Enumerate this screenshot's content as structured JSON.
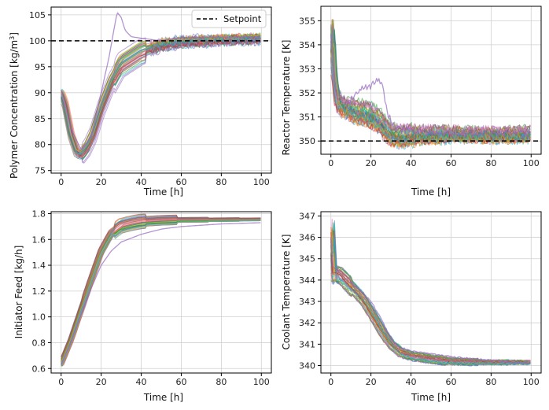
{
  "figure": {
    "palette": [
      "#1f77b4",
      "#ff7f0e",
      "#2ca02c",
      "#d62728",
      "#9467bd",
      "#8c564b",
      "#e377c2",
      "#7f7f7f",
      "#bcbd22",
      "#17becf"
    ],
    "grid_color": "#d0d0d0",
    "setpoint_color": "#000000",
    "line_alpha": 0.55
  },
  "chart_data": [
    {
      "id": "polymer",
      "type": "line",
      "title": "",
      "xlabel": "Time [h]",
      "ylabel_main": "Polymer Concentration [kg/m",
      "ylabel_sup": "3",
      "ylabel_tail": "]",
      "xlim": [
        -5,
        105
      ],
      "ylim": [
        74.5,
        106.5
      ],
      "xticks": [
        0,
        20,
        40,
        60,
        80,
        100
      ],
      "yticks": [
        75,
        80,
        85,
        90,
        95,
        100,
        105
      ],
      "setpoint": 100,
      "legend": {
        "label": "Setpoint",
        "location": "top-right"
      },
      "n_traces": 40,
      "trend": {
        "t": [
          0,
          2,
          5,
          8,
          10,
          13,
          16,
          20,
          25,
          30,
          40,
          50,
          60,
          70,
          80,
          90,
          100
        ],
        "y": [
          90,
          88,
          82,
          78.5,
          78,
          79.5,
          82,
          87,
          92,
          95.5,
          98,
          99.2,
          99.8,
          100,
          100.2,
          100.3,
          100.4
        ]
      },
      "spread": [
        0.9,
        1.6,
        2.5,
        1.0,
        0.9,
        0.8,
        0.8
      ],
      "outlier": {
        "t": [
          0,
          5,
          10,
          15,
          20,
          24,
          27,
          28,
          30,
          32,
          35,
          40,
          50,
          60,
          100
        ],
        "y": [
          90.5,
          83,
          79,
          81.5,
          90,
          97,
          103.5,
          105.5,
          104.5,
          102,
          100.8,
          100.5,
          100,
          100.6,
          100.8
        ]
      }
    },
    {
      "id": "reactor",
      "type": "line",
      "title": "",
      "xlabel": "Time [h]",
      "ylabel": "Reactor Temperature [K]",
      "xlim": [
        -5,
        105
      ],
      "ylim": [
        349.45,
        355.6
      ],
      "xticks": [
        0,
        20,
        40,
        60,
        80,
        100
      ],
      "yticks": [
        350,
        351,
        352,
        353,
        354,
        355
      ],
      "setpoint": 350,
      "n_traces": 40,
      "trend": {
        "t": [
          0,
          0.5,
          1.5,
          3,
          5,
          10,
          15,
          20,
          25,
          28,
          30,
          35,
          40,
          60,
          80,
          100
        ],
        "y": [
          353.8,
          355.0,
          353.0,
          351.9,
          351.5,
          351.3,
          351.2,
          351.1,
          350.8,
          350.5,
          350.3,
          350.2,
          350.25,
          350.3,
          350.25,
          350.3
        ]
      },
      "spread": [
        0.35,
        0.45,
        0.4,
        0.3,
        0.25,
        0.25,
        0.25
      ],
      "noise": 0.18,
      "outlier": {
        "t": [
          0,
          1,
          3,
          8,
          12,
          16,
          20,
          24,
          26,
          28,
          32,
          40,
          60,
          100
        ],
        "y": [
          354.5,
          353.5,
          351.8,
          351.6,
          351.9,
          352.2,
          352.3,
          352.6,
          352.3,
          351.2,
          350.5,
          350.4,
          350.3,
          350.3
        ]
      }
    },
    {
      "id": "initiator",
      "type": "line",
      "title": "",
      "xlabel": "Time [h]",
      "ylabel": "Initiator Feed [kg/h]",
      "xlim": [
        -5,
        105
      ],
      "ylim": [
        0.565,
        1.815
      ],
      "xticks": [
        0,
        20,
        40,
        60,
        80,
        100
      ],
      "yticks": [
        0.6,
        0.8,
        1.0,
        1.2,
        1.4,
        1.6,
        1.8
      ],
      "n_traces": 40,
      "trend": {
        "t": [
          0,
          5,
          10,
          15,
          20,
          25,
          30,
          35,
          40,
          50,
          60,
          80,
          100
        ],
        "y": [
          0.63,
          0.82,
          1.05,
          1.28,
          1.5,
          1.64,
          1.7,
          1.72,
          1.735,
          1.745,
          1.75,
          1.752,
          1.755
        ]
      },
      "spread": [
        0.015,
        0.03,
        0.06,
        0.04,
        0.02,
        0.015,
        0.012
      ],
      "outlier": {
        "t": [
          0,
          5,
          10,
          15,
          20,
          25,
          30,
          40,
          50,
          60,
          80,
          100
        ],
        "y": [
          0.63,
          0.81,
          1.02,
          1.22,
          1.4,
          1.51,
          1.58,
          1.64,
          1.68,
          1.7,
          1.72,
          1.73
        ]
      }
    },
    {
      "id": "coolant",
      "type": "line",
      "title": "",
      "xlabel": "Time [h]",
      "ylabel": "Coolant Temperature [K]",
      "xlim": [
        -5,
        105
      ],
      "ylim": [
        339.65,
        347.2
      ],
      "xticks": [
        0,
        20,
        40,
        60,
        80,
        100
      ],
      "yticks": [
        340,
        341,
        342,
        343,
        344,
        345,
        346,
        347
      ],
      "n_traces": 40,
      "trend": {
        "t": [
          0,
          0.5,
          1.5,
          3,
          5,
          8,
          12,
          16,
          20,
          25,
          30,
          35,
          40,
          50,
          60,
          80,
          100
        ],
        "y": [
          345.5,
          346.5,
          344.2,
          344.3,
          344.2,
          343.9,
          343.5,
          343.1,
          342.5,
          341.7,
          341.0,
          340.6,
          340.45,
          340.3,
          340.2,
          340.15,
          340.15
        ]
      },
      "spread": [
        0.4,
        0.25,
        0.2,
        0.2,
        0.15,
        0.1,
        0.08
      ],
      "noise": 0.05,
      "outlier": {
        "t": [
          0,
          1,
          3,
          8,
          15,
          20,
          25,
          30,
          33,
          40,
          60,
          100
        ],
        "y": [
          346.0,
          344.6,
          344.5,
          344.0,
          343.5,
          343.0,
          342.2,
          341.3,
          340.9,
          340.7,
          340.4,
          340.1
        ]
      }
    }
  ]
}
